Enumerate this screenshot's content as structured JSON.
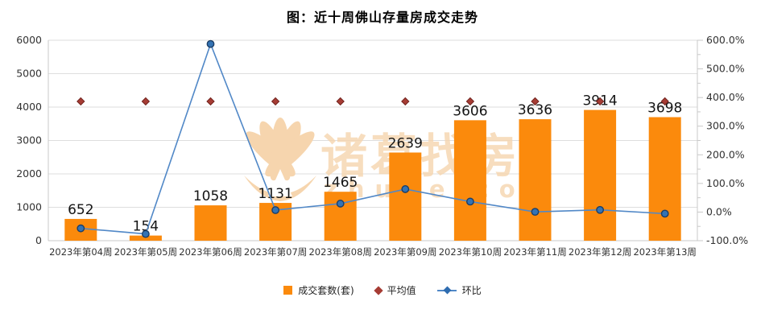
{
  "title": "图：近十周佛山存量房成交走势",
  "legend": {
    "items": [
      {
        "label": "成交套数(套)",
        "icon": "bar-swatch",
        "color": "#FB8A0C"
      },
      {
        "label": "平均值",
        "icon": "diamond",
        "color": "#A63C34"
      },
      {
        "label": "环比",
        "icon": "line-diamond",
        "color": "#5188C7",
        "marker_color": "#2E6CB0"
      }
    ]
  },
  "watermark": {
    "logo": "lotus-icon",
    "text": "诸葛找房",
    "subtext": "zhuge.com",
    "color": "#F6D5AE"
  },
  "colors": {
    "bar": "#FB8A0C",
    "bar_label": "#141414",
    "line": "#5188C7",
    "line_marker_fill": "#3473B4",
    "line_marker_stroke": "#1C3E66",
    "average_fill": "#A63C34",
    "average_stroke": "#6E211C",
    "grid": "#DEDEDE",
    "axis": "#C9C9C9",
    "tick_text": "#333333"
  },
  "chart_data": {
    "type": "bar",
    "title": "图：近十周佛山存量房成交走势",
    "categories": [
      "2023年第04周",
      "2023年第05周",
      "2023年第06周",
      "2023年第07周",
      "2023年第08周",
      "2023年第09周",
      "2023年第10周",
      "2023年第11周",
      "2023年第12周",
      "2023年第13周"
    ],
    "series": [
      {
        "name": "成交套数(套)",
        "type": "bar",
        "axis": "left",
        "values": [
          652,
          154,
          1058,
          1131,
          1465,
          2639,
          3606,
          3636,
          3914,
          3698
        ]
      },
      {
        "name": "平均值",
        "type": "scatter",
        "axis": "left",
        "values": [
          4170,
          4170,
          4170,
          4170,
          4170,
          4170,
          4170,
          4170,
          4170,
          4170
        ]
      },
      {
        "name": "环比",
        "type": "line",
        "axis": "right",
        "unit": "%",
        "values": [
          -57.0,
          -76.4,
          587.0,
          6.9,
          29.5,
          80.1,
          36.6,
          0.8,
          7.6,
          -5.5
        ]
      }
    ],
    "left_axis": {
      "min": 0,
      "max": 6000,
      "step": 1000,
      "tick_labels": [
        "0",
        "1000",
        "2000",
        "3000",
        "4000",
        "5000",
        "6000"
      ]
    },
    "right_axis": {
      "min": -100,
      "max": 600,
      "step": 100,
      "minor_step": 50,
      "tick_labels": [
        "-100.0%",
        "0.0%",
        "100.0%",
        "200.0%",
        "300.0%",
        "400.0%",
        "500.0%",
        "600.0%"
      ]
    },
    "grid": true,
    "legend_position": "bottom"
  }
}
